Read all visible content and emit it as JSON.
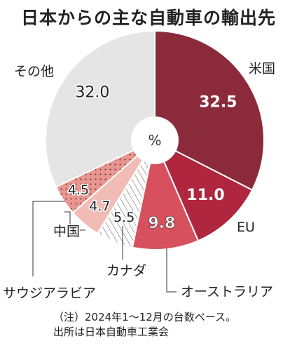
{
  "title": "日本からの主な自動車の輸出先",
  "center_label": "%",
  "note": {
    "line1": "（注）2024年1～12月の台数ベース。",
    "line2": "出所は日本自動車工業会"
  },
  "chart_data": {
    "type": "pie",
    "donut": true,
    "unit": "%",
    "slices": [
      {
        "name": "米国",
        "value": 32.5,
        "color": "#8b2a3a",
        "pattern": "none"
      },
      {
        "name": "EU",
        "value": 11.0,
        "color": "#b0263f",
        "pattern": "none"
      },
      {
        "name": "オーストラリア",
        "value": 9.8,
        "color": "#d7505e",
        "pattern": "none"
      },
      {
        "name": "カナダ",
        "value": 5.5,
        "color": "#ffffff",
        "pattern": "diagonal-lines"
      },
      {
        "name": "中国",
        "value": 4.7,
        "color": "#f0bcb5",
        "pattern": "none"
      },
      {
        "name": "サウジアラビア",
        "value": 4.5,
        "color": "#e7978f",
        "pattern": "dots"
      },
      {
        "name": "その他",
        "value": 32.0,
        "color": "#e5e5e5",
        "pattern": "none"
      }
    ]
  }
}
